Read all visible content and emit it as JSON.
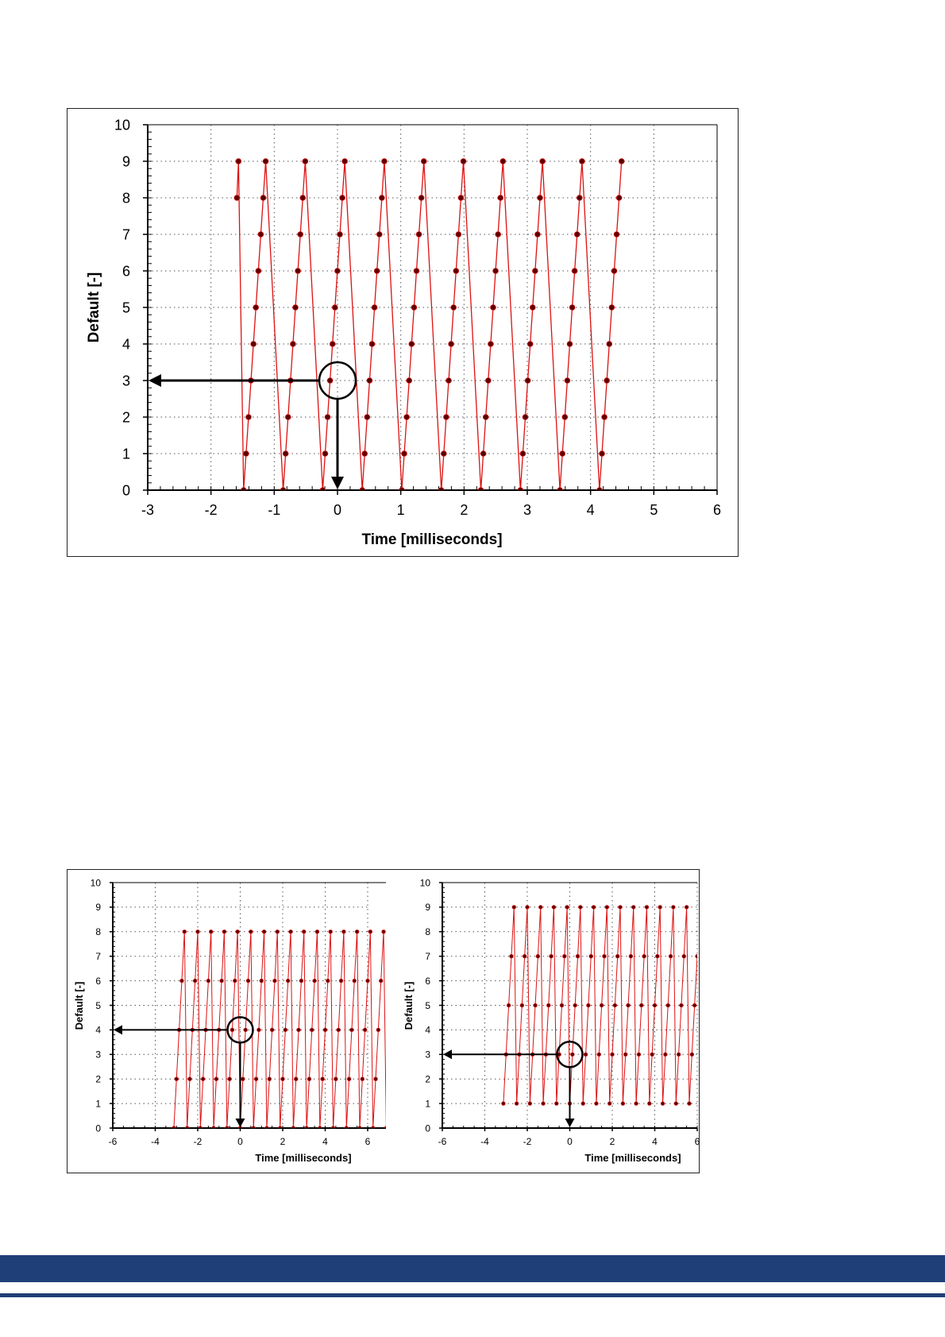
{
  "colors": {
    "series": "#dd1111",
    "marker": "#5a0000",
    "grid": "#555555",
    "axis": "#000000",
    "annotation": "#000000",
    "footer": "#1e3f78"
  },
  "chart_data": [
    {
      "type": "line",
      "xlabel": "Time [milliseconds]",
      "ylabel": "Default [-]",
      "xlim": [
        -3,
        6
      ],
      "ylim": [
        0,
        10
      ],
      "xticks": [
        "-3",
        "-2",
        "-1",
        "0",
        "1",
        "2",
        "3",
        "4",
        "5",
        "6"
      ],
      "yticks": [
        "0",
        "1",
        "2",
        "3",
        "4",
        "5",
        "6",
        "7",
        "8",
        "9",
        "10"
      ],
      "grid": true,
      "markers": true,
      "series": [
        {
          "pattern": "sawtooth 0..9 step 1",
          "period_ms": 0.625,
          "first_point": {
            "x": -1.59,
            "y": 8
          },
          "last_point": {
            "x": 4.65,
            "y": 7
          }
        }
      ],
      "annotation": {
        "circled_point": {
          "x": 0,
          "y": 3
        },
        "arrow_to_y": 3,
        "arrow_to_x": 0
      }
    },
    {
      "type": "line",
      "xlabel": "Time [milliseconds]",
      "ylabel": "Default [-]",
      "xlim": [
        -6,
        6
      ],
      "ylim": [
        0,
        10
      ],
      "xticks": [
        "-6",
        "-4",
        "-2",
        "0",
        "2",
        "4",
        "6"
      ],
      "yticks": [
        "0",
        "1",
        "2",
        "3",
        "4",
        "5",
        "6",
        "7",
        "8",
        "9",
        "10"
      ],
      "grid": true,
      "markers": true,
      "series": [
        {
          "pattern": "sawtooth 0..8 step 2",
          "period_ms": 0.625,
          "start_x": -3.125,
          "end_x": 6.9
        }
      ],
      "annotation": {
        "circled_point": {
          "x": 0,
          "y": 4
        },
        "arrow_to_y": 4,
        "arrow_to_x": 0
      }
    },
    {
      "type": "line",
      "xlabel": "Time [milliseconds]",
      "ylabel": "Default [-]",
      "xlim": [
        -6,
        6
      ],
      "ylim": [
        0,
        10
      ],
      "xticks": [
        "-6",
        "-4",
        "-2",
        "0",
        "2",
        "4",
        "6"
      ],
      "yticks": [
        "0",
        "1",
        "2",
        "3",
        "4",
        "5",
        "6",
        "7",
        "8",
        "9",
        "10"
      ],
      "grid": true,
      "markers": true,
      "series": [
        {
          "pattern": "sawtooth 1..9 step 2",
          "period_ms": 0.625,
          "start_x": -3.125,
          "end_x": 6.0
        }
      ],
      "annotation": {
        "circled_point": {
          "x": 0,
          "y": 3
        },
        "arrow_to_y": 3,
        "arrow_to_x": 0
      }
    }
  ]
}
